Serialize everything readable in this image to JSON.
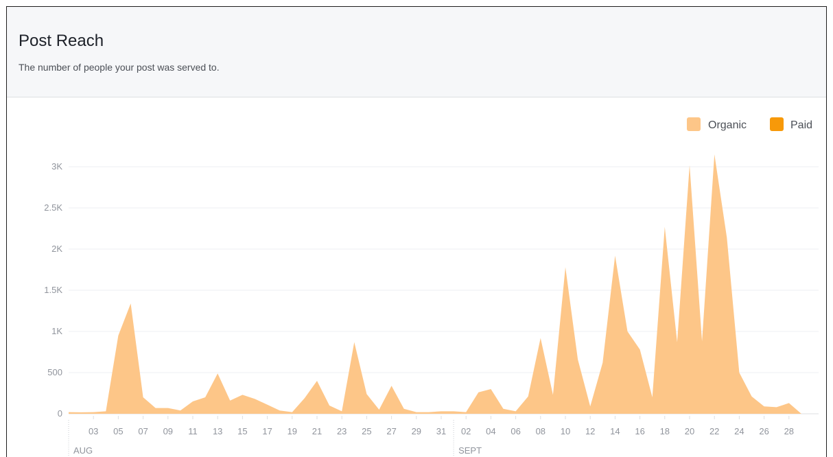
{
  "header": {
    "title": "Post Reach",
    "subtitle": "The number of people your post was served to."
  },
  "colors": {
    "organic": "#fdc688",
    "paid": "#f79909",
    "grid": "#eceff3",
    "axis_text": "#90949c"
  },
  "chart_data": {
    "type": "area",
    "title": "Post Reach",
    "subtitle": "The number of people your post was served to.",
    "xlabel": "",
    "ylabel": "",
    "ylim": [
      0,
      3000
    ],
    "yticks": [
      0,
      500,
      1000,
      1500,
      2000,
      2500,
      3000
    ],
    "ytick_labels": [
      "0",
      "500",
      "1K",
      "1.5K",
      "2K",
      "2.5K",
      "3K"
    ],
    "grid": true,
    "legend": "top-right",
    "stacked": true,
    "xtick_labels": [
      "03",
      "05",
      "07",
      "09",
      "11",
      "13",
      "15",
      "17",
      "19",
      "21",
      "23",
      "25",
      "27",
      "29",
      "31",
      "02",
      "04",
      "06",
      "08",
      "10",
      "12",
      "14",
      "16",
      "18",
      "20",
      "22",
      "24",
      "26",
      "28"
    ],
    "month_labels": [
      "AUG",
      "SEPT"
    ],
    "x": [
      "2015-08-01",
      "2015-08-02",
      "2015-08-03",
      "2015-08-04",
      "2015-08-05",
      "2015-08-06",
      "2015-08-07",
      "2015-08-08",
      "2015-08-09",
      "2015-08-10",
      "2015-08-11",
      "2015-08-12",
      "2015-08-13",
      "2015-08-14",
      "2015-08-15",
      "2015-08-16",
      "2015-08-17",
      "2015-08-18",
      "2015-08-19",
      "2015-08-20",
      "2015-08-21",
      "2015-08-22",
      "2015-08-23",
      "2015-08-24",
      "2015-08-25",
      "2015-08-26",
      "2015-08-27",
      "2015-08-28",
      "2015-08-29",
      "2015-08-30",
      "2015-08-31",
      "2015-09-01",
      "2015-09-02",
      "2015-09-03",
      "2015-09-04",
      "2015-09-05",
      "2015-09-06",
      "2015-09-07",
      "2015-09-08",
      "2015-09-09",
      "2015-09-10",
      "2015-09-11",
      "2015-09-12",
      "2015-09-13",
      "2015-09-14",
      "2015-09-15",
      "2015-09-16",
      "2015-09-17",
      "2015-09-18",
      "2015-09-19",
      "2015-09-20",
      "2015-09-21",
      "2015-09-22",
      "2015-09-23",
      "2015-09-24",
      "2015-09-25",
      "2015-09-26",
      "2015-09-27",
      "2015-09-28",
      "2015-09-29"
    ],
    "series": [
      {
        "name": "Organic",
        "values": [
          20,
          18,
          20,
          30,
          950,
          1340,
          200,
          70,
          70,
          40,
          150,
          200,
          490,
          160,
          230,
          180,
          110,
          40,
          20,
          190,
          400,
          100,
          30,
          870,
          240,
          50,
          340,
          60,
          20,
          20,
          30,
          30,
          20,
          260,
          300,
          60,
          30,
          210,
          920,
          230,
          1780,
          660,
          90,
          620,
          1920,
          1000,
          780,
          200,
          2270,
          870,
          3020,
          880,
          3150,
          2140,
          500,
          210,
          90,
          80,
          130,
          0
        ]
      },
      {
        "name": "Paid",
        "values": [
          0,
          0,
          0,
          0,
          0,
          0,
          0,
          0,
          0,
          0,
          0,
          0,
          0,
          0,
          0,
          0,
          0,
          0,
          0,
          0,
          0,
          0,
          0,
          0,
          0,
          0,
          0,
          0,
          0,
          0,
          0,
          0,
          0,
          0,
          0,
          0,
          0,
          0,
          0,
          0,
          0,
          0,
          0,
          0,
          0,
          0,
          0,
          0,
          0,
          0,
          0,
          0,
          0,
          0,
          0,
          0,
          0,
          0,
          0,
          0
        ]
      }
    ]
  }
}
